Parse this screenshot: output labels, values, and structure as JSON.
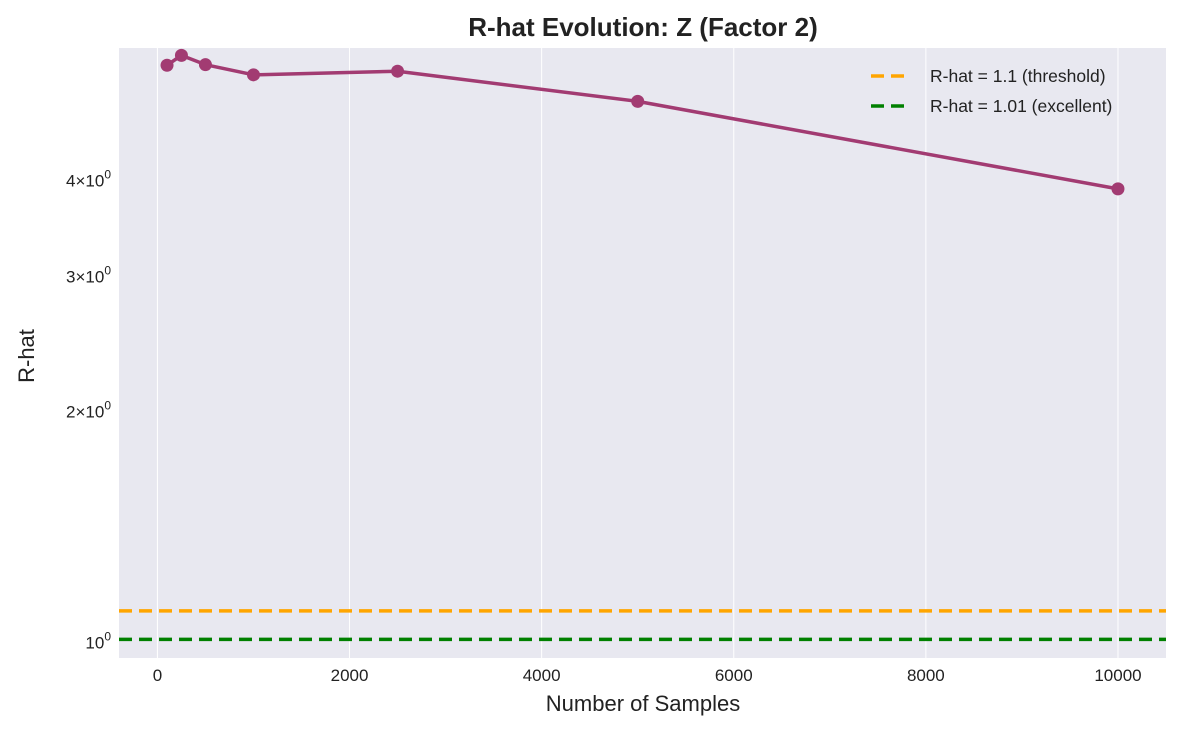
{
  "chart_data": {
    "type": "line",
    "title": "R-hat Evolution: Z (Factor 2)",
    "xlabel": "Number of Samples",
    "ylabel": "R-hat",
    "x_scale": "linear",
    "y_scale": "log",
    "xlim": [
      -400,
      10500
    ],
    "ylim": [
      0.955,
      5.95
    ],
    "x_ticks": [
      0,
      2000,
      4000,
      6000,
      8000,
      10000
    ],
    "x_tick_labels": [
      "0",
      "2000",
      "4000",
      "6000",
      "8000",
      "10000"
    ],
    "y_ticks": [
      {
        "value": 1,
        "mantissa": "",
        "exp": "0",
        "base": "10"
      },
      {
        "value": 2,
        "mantissa": "2",
        "exp": "0",
        "base": "10"
      },
      {
        "value": 3,
        "mantissa": "3",
        "exp": "0",
        "base": "10"
      },
      {
        "value": 4,
        "mantissa": "4",
        "exp": "0",
        "base": "10"
      }
    ],
    "grid": true,
    "legend_position": "top-right",
    "series": [
      {
        "color": "#a23b72",
        "x": [
          100,
          250,
          500,
          1000,
          2500,
          5000,
          10000
        ],
        "y": [
          5.65,
          5.82,
          5.66,
          5.49,
          5.55,
          5.07,
          3.9
        ]
      }
    ],
    "reference_lines": [
      {
        "name": "R-hat = 1.1 (threshold)",
        "y": 1.1,
        "color": "#ffa500",
        "style": "dashed"
      },
      {
        "name": "R-hat = 1.01 (excellent)",
        "y": 1.01,
        "color": "#008000",
        "style": "dashed"
      }
    ],
    "plot_background": "#e8e8f0",
    "grid_color": "#ffffff"
  }
}
